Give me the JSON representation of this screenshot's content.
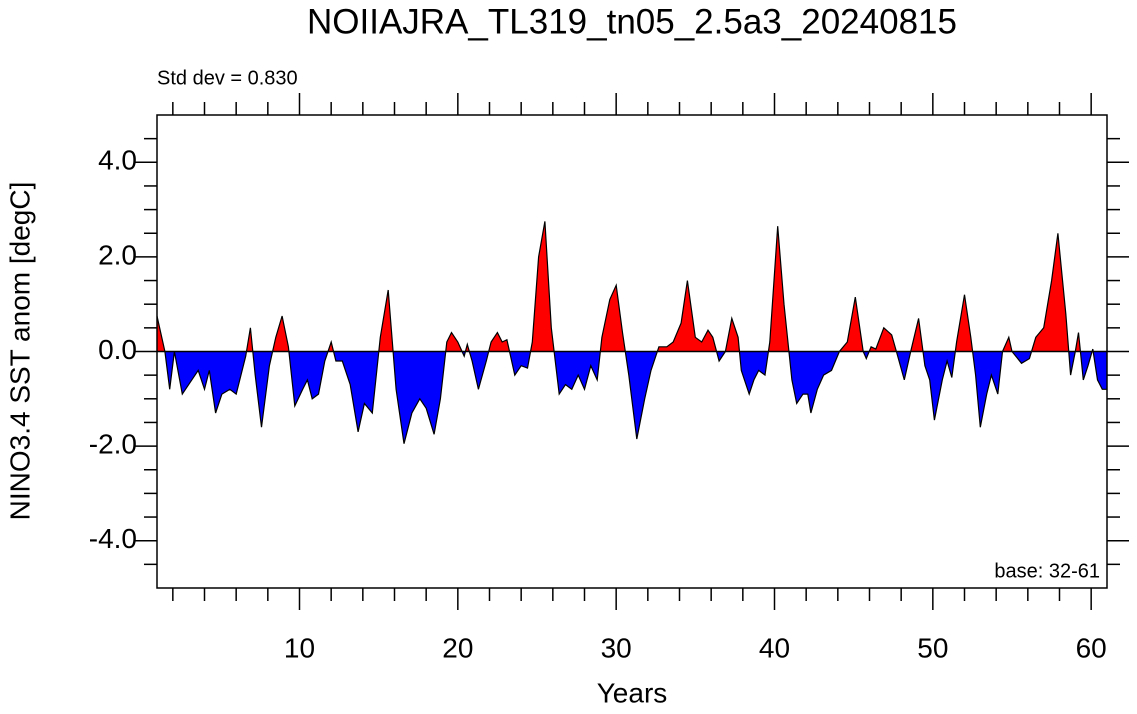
{
  "chart_data": {
    "type": "area",
    "title": "NOIIAJRA_TL319_tn05_2.5a3_20240815",
    "subtitle": "Std dev = 0.830",
    "annotation": "base: 32-61",
    "x_label": "Years",
    "y_label": "NINO3.4 SST anom [degC]",
    "positive_color": "#ff0000",
    "negative_color": "#0000ff",
    "line_color": "#000000",
    "xlim": [
      1,
      61
    ],
    "ylim": [
      -5,
      5
    ],
    "xticks": [
      10,
      20,
      30,
      40,
      50,
      60
    ],
    "yticks": [
      {
        "value": -4,
        "label": "-4.0"
      },
      {
        "value": -2,
        "label": "-2.0"
      },
      {
        "value": 0,
        "label": "0.0"
      },
      {
        "value": 2,
        "label": "2.0"
      },
      {
        "value": 4,
        "label": "4.0"
      }
    ],
    "xminor_ticks": [
      2,
      4,
      6,
      8,
      12,
      14,
      16,
      18,
      22,
      24,
      26,
      28,
      32,
      34,
      36,
      38,
      42,
      44,
      46,
      48,
      52,
      54,
      56,
      58
    ],
    "yminor_ticks": [
      -4.5,
      -3.5,
      -3,
      -2.5,
      -1.5,
      -1,
      -0.5,
      0.5,
      1,
      1.5,
      2.5,
      3,
      3.5,
      4.5
    ],
    "x": [
      1.0,
      1.5,
      1.8,
      2.1,
      2.6,
      3.2,
      3.6,
      4.0,
      4.3,
      4.7,
      5.1,
      5.6,
      6.0,
      6.6,
      6.9,
      7.2,
      7.6,
      8.1,
      8.5,
      8.9,
      9.3,
      9.7,
      10.2,
      10.5,
      10.8,
      11.2,
      11.6,
      12.0,
      12.3,
      12.7,
      13.2,
      13.7,
      14.1,
      14.6,
      15.1,
      15.6,
      16.1,
      16.6,
      17.1,
      17.6,
      18.0,
      18.5,
      18.9,
      19.3,
      19.6,
      20.0,
      20.4,
      20.6,
      20.9,
      21.3,
      21.8,
      22.1,
      22.5,
      22.8,
      23.1,
      23.6,
      24.0,
      24.4,
      24.7,
      25.1,
      25.5,
      25.9,
      26.4,
      26.8,
      27.2,
      27.6,
      28.0,
      28.4,
      28.8,
      29.1,
      29.6,
      30.0,
      30.4,
      30.8,
      31.3,
      31.8,
      32.2,
      32.7,
      33.2,
      33.6,
      34.1,
      34.5,
      35.0,
      35.4,
      35.8,
      36.1,
      36.5,
      36.9,
      37.3,
      37.7,
      37.9,
      38.4,
      38.7,
      39.0,
      39.4,
      39.7,
      40.2,
      40.6,
      41.1,
      41.4,
      41.8,
      42.1,
      42.3,
      42.7,
      43.1,
      43.6,
      44.1,
      44.6,
      45.1,
      45.6,
      45.8,
      46.1,
      46.4,
      46.9,
      47.4,
      47.7,
      48.2,
      48.6,
      49.1,
      49.5,
      49.8,
      50.1,
      50.6,
      50.9,
      51.2,
      51.5,
      52.0,
      52.4,
      52.7,
      53.0,
      53.4,
      53.7,
      54.1,
      54.4,
      54.8,
      55.0,
      55.6,
      56.1,
      56.5,
      57.0,
      57.5,
      57.9,
      58.4,
      58.7,
      59.0,
      59.2,
      59.5,
      59.8,
      60.1,
      60.4,
      60.7,
      61.0
    ],
    "values": [
      0.75,
      0,
      -0.8,
      0,
      -0.9,
      -0.6,
      -0.4,
      -0.8,
      -0.4,
      -1.3,
      -0.9,
      -0.8,
      -0.9,
      -0.1,
      0.5,
      -0.5,
      -1.6,
      -0.3,
      0.3,
      0.75,
      0.1,
      -1.15,
      -0.8,
      -0.6,
      -1.0,
      -0.9,
      -0.2,
      0.2,
      -0.2,
      -0.2,
      -0.7,
      -1.7,
      -1.1,
      -1.3,
      0.3,
      1.3,
      -0.8,
      -1.95,
      -1.3,
      -1.0,
      -1.2,
      -1.75,
      -1.0,
      0.2,
      0.4,
      0.2,
      -0.1,
      0.15,
      -0.2,
      -0.8,
      -0.2,
      0.2,
      0.4,
      0.2,
      0.25,
      -0.5,
      -0.3,
      -0.35,
      0.2,
      2.0,
      2.75,
      0.5,
      -0.9,
      -0.7,
      -0.8,
      -0.5,
      -0.8,
      -0.3,
      -0.6,
      0.3,
      1.1,
      1.4,
      0.4,
      -0.5,
      -1.85,
      -1.0,
      -0.4,
      0.1,
      0.1,
      0.2,
      0.6,
      1.5,
      0.3,
      0.2,
      0.45,
      0.3,
      -0.2,
      0,
      0.7,
      0.3,
      -0.4,
      -0.9,
      -0.6,
      -0.4,
      -0.5,
      0.2,
      2.65,
      1.0,
      -0.6,
      -1.1,
      -0.9,
      -0.9,
      -1.3,
      -0.8,
      -0.5,
      -0.4,
      0,
      0.2,
      1.15,
      0,
      -0.15,
      0.1,
      0.05,
      0.5,
      0.35,
      0,
      -0.6,
      0,
      0.7,
      -0.3,
      -0.6,
      -1.45,
      -0.6,
      -0.2,
      -0.55,
      0.2,
      1.2,
      0.3,
      -0.5,
      -1.6,
      -0.9,
      -0.5,
      -0.9,
      0,
      0.3,
      0,
      -0.25,
      -0.15,
      0.3,
      0.5,
      1.5,
      2.5,
      0.8,
      -0.5,
      0,
      0.4,
      -0.6,
      -0.3,
      0.05,
      -0.6,
      -0.8,
      -0.8
    ]
  }
}
